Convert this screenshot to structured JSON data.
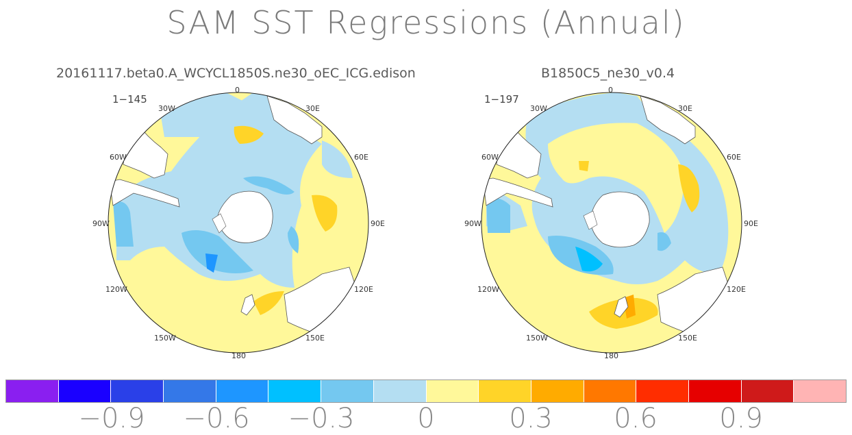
{
  "title": "SAM SST Regressions (Annual)",
  "panels": [
    {
      "title": "20161117.beta0.A_WCYCL1850S.ne30_oEC_ICG.edison",
      "years": "1−145",
      "lon_labels": [
        "0",
        "30E",
        "60E",
        "90E",
        "120E",
        "150E",
        "180",
        "150W",
        "120W",
        "90W",
        "60W",
        "30W"
      ]
    },
    {
      "title": "B1850C5_ne30_v0.4",
      "years": "1−197",
      "lon_labels": [
        "0",
        "30E",
        "60E",
        "90E",
        "120E",
        "150E",
        "180",
        "150W",
        "120W",
        "90W",
        "60W",
        "30W"
      ]
    }
  ],
  "colorbar": {
    "colors": [
      "#8a1ff0",
      "#1a00ff",
      "#2a40e8",
      "#3478e8",
      "#1e96ff",
      "#00c0ff",
      "#74c8f0",
      "#b4def2",
      "#fff89a",
      "#ffd428",
      "#ffab00",
      "#ff7800",
      "#ff2d00",
      "#e60000",
      "#cf1a1a",
      "#ffb4b4"
    ],
    "tick_labels": [
      "−0.9",
      "−0.6",
      "−0.3",
      "0",
      "0.3",
      "0.6",
      "0.9"
    ]
  }
}
